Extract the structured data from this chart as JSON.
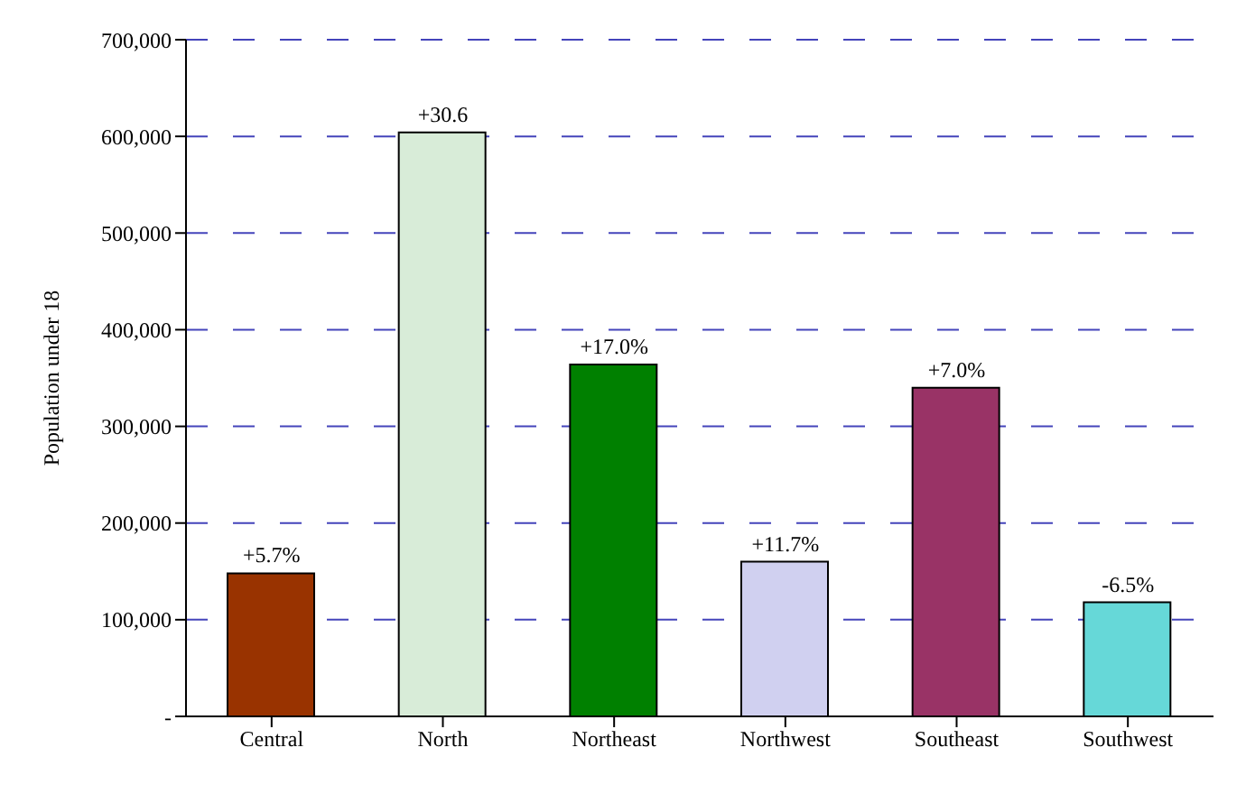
{
  "chart_data": {
    "type": "bar",
    "ylabel": "Population under 18",
    "categories": [
      "Central",
      "North",
      "Northeast",
      "Northwest",
      "Southeast",
      "Southwest"
    ],
    "values": [
      148000,
      604000,
      364000,
      160000,
      340000,
      118000
    ],
    "colors": [
      "#993300",
      "#d8ecd8",
      "#008000",
      "#d0d0f0",
      "#993366",
      "#66d8d8"
    ],
    "annotations": [
      {
        "text": "+5.7%",
        "x": "Central",
        "y": 148000
      },
      {
        "text": "+30.6",
        "x": "North",
        "y": 604000
      },
      {
        "text": "+17.0%",
        "x": "Northeast",
        "y": 364000
      },
      {
        "text": "+11.7%",
        "x": "Northwest",
        "y": 160000
      },
      {
        "text": "+7.0%",
        "x": "Southeast",
        "y": 340000
      },
      {
        "text": "-6.5%",
        "x": "Southwest",
        "y": 118000
      }
    ],
    "ylim": [
      0,
      700000
    ],
    "yticks": [
      {
        "value": 0,
        "label": "-"
      },
      {
        "value": 100000,
        "label": "100,000"
      },
      {
        "value": 200000,
        "label": "200,000"
      },
      {
        "value": 300000,
        "label": "300,000"
      },
      {
        "value": 400000,
        "label": "400,000"
      },
      {
        "value": 500000,
        "label": "500,000"
      },
      {
        "value": 600000,
        "label": "600,000"
      },
      {
        "value": 700000,
        "label": "700,000"
      }
    ],
    "grid": "y"
  }
}
